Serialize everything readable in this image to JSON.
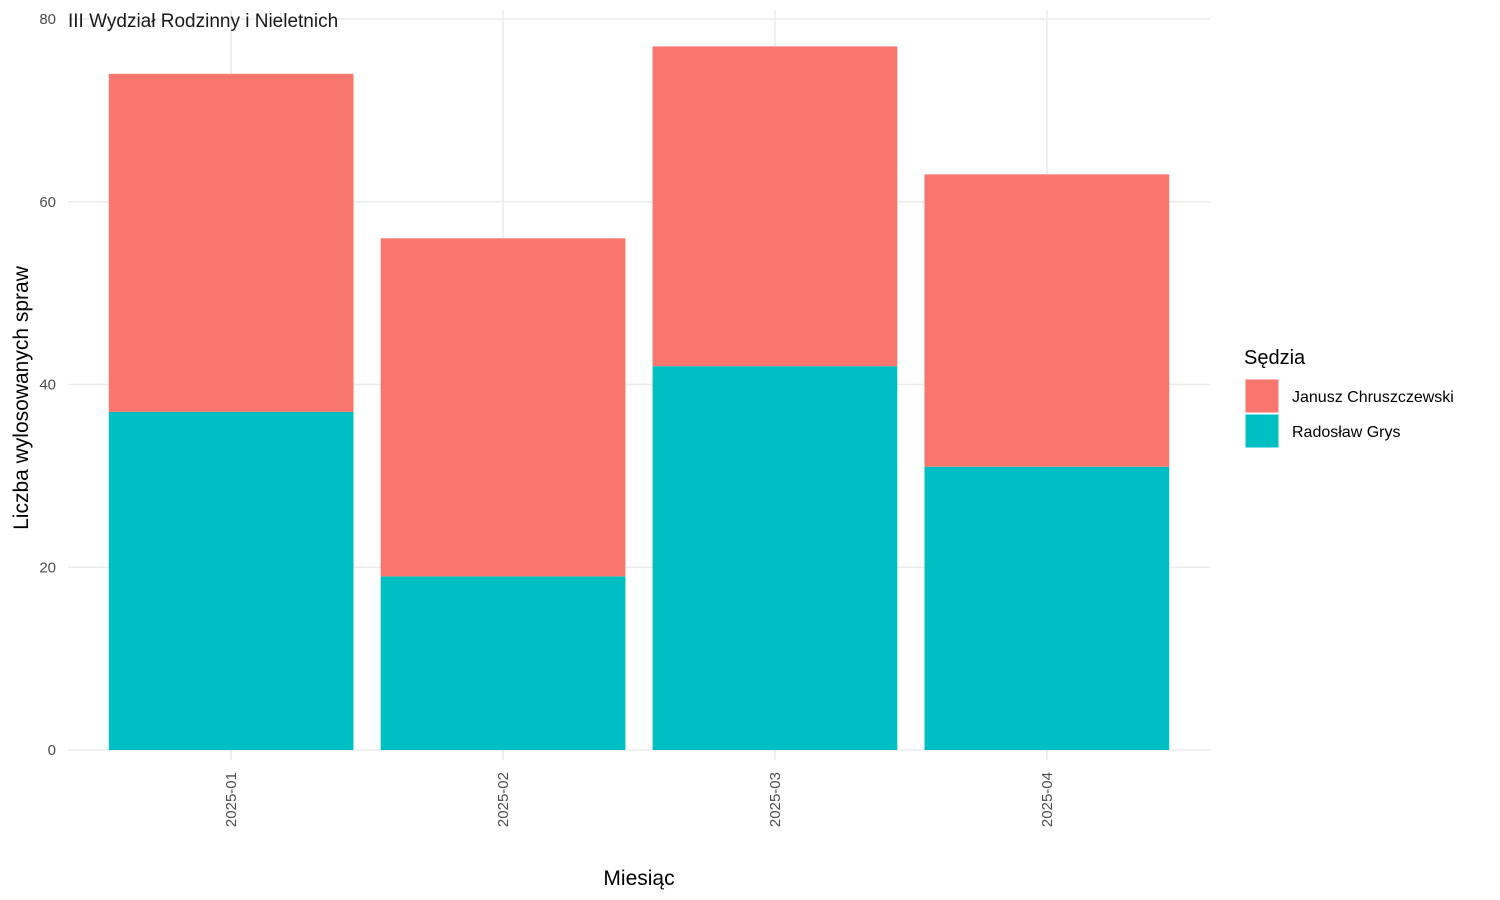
{
  "chart_data": {
    "type": "bar",
    "stacked": true,
    "facet_title": "III Wydział Rodzinny i Nieletnich",
    "xlabel": "Miesiąc",
    "ylabel": "Liczba wylosowanych spraw",
    "categories": [
      "2025-01",
      "2025-02",
      "2025-03",
      "2025-04"
    ],
    "series": [
      {
        "name": "Radosław Grys",
        "color": "#00BFC4",
        "values": [
          37,
          19,
          42,
          31
        ]
      },
      {
        "name": "Janusz Chruszczewski",
        "color": "#F8766D",
        "values": [
          37,
          37,
          35,
          32
        ]
      }
    ],
    "ylim": [
      0,
      80
    ],
    "yticks": [
      0,
      20,
      40,
      60,
      80
    ],
    "grid": true,
    "x_tick_rotation": "vertical",
    "legend": {
      "title": "Sędzia",
      "position": "right",
      "entries": [
        {
          "name": "Janusz Chruszczewski",
          "color": "#F8766D"
        },
        {
          "name": "Radosław Grys",
          "color": "#00BFC4"
        }
      ]
    }
  }
}
